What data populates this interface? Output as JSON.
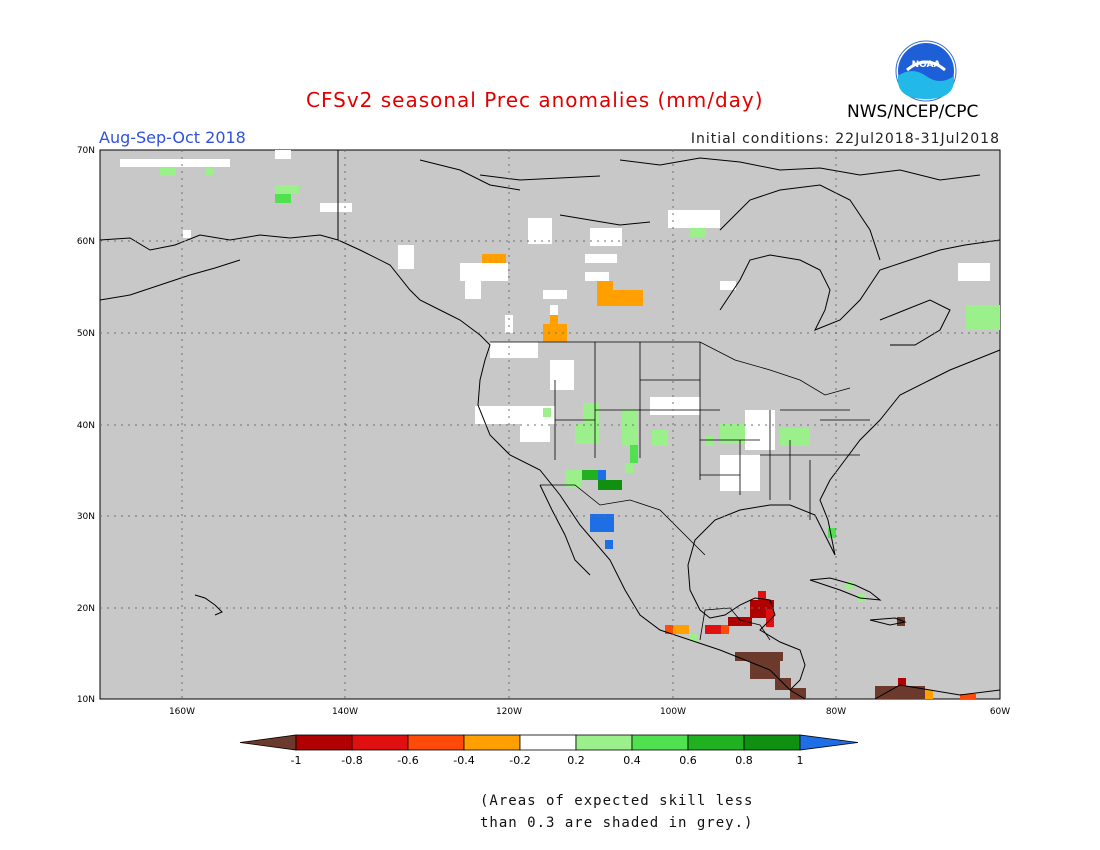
{
  "header": {
    "title": "CFSv2 seasonal Prec anomalies (mm/day)",
    "period": "Aug-Sep-Oct 2018",
    "initial_conditions": "Initial conditions: 22Jul2018-31Jul2018",
    "agency": "NWS/NCEP/CPC",
    "logo_text": "NOAA"
  },
  "map": {
    "lat_labels": [
      "70N",
      "60N",
      "50N",
      "40N",
      "30N",
      "20N",
      "10N"
    ],
    "lon_labels": [
      "160W",
      "140W",
      "120W",
      "100W",
      "80W",
      "60W"
    ],
    "background_color": "#c8c8c8",
    "grid": "dotted"
  },
  "colorbar": {
    "ticks": [
      "-1",
      "-0.8",
      "-0.6",
      "-0.4",
      "-0.2",
      "0.2",
      "0.4",
      "0.6",
      "0.8",
      "1"
    ],
    "colors": [
      "#6b3a2c",
      "#b00000",
      "#e01010",
      "#ff4a0a",
      "#ffa000",
      "#ffffff",
      "#9cf08c",
      "#50e050",
      "#20b020",
      "#109010",
      "#1e6ee6"
    ]
  },
  "footnote": {
    "line1": "(Areas of expected skill less",
    "line2": "than 0.3 are shaded in grey.)"
  }
}
